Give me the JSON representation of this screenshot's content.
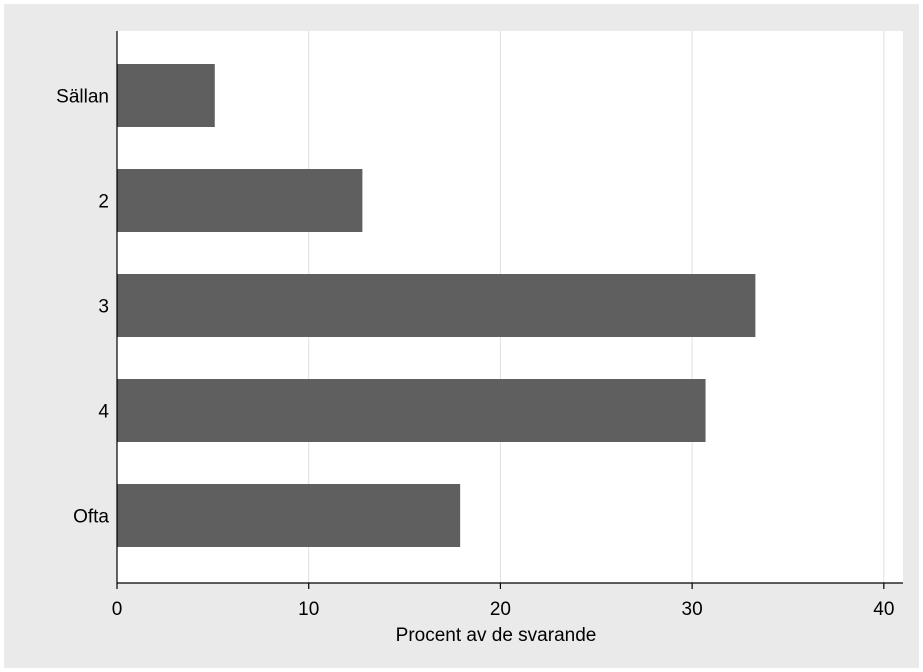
{
  "chart_data": {
    "type": "bar",
    "orientation": "horizontal",
    "title": "",
    "xlabel": "Procent av de svarande",
    "ylabel": "",
    "categories": [
      "Sällan",
      "2",
      "3",
      "4",
      "Ofta"
    ],
    "values": [
      5.1,
      12.8,
      33.3,
      30.7,
      17.9
    ],
    "xlim": [
      0,
      41
    ],
    "xticks": [
      0,
      10,
      20,
      30,
      40
    ],
    "xtick_labels": [
      "0",
      "10",
      "20",
      "30",
      "40"
    ],
    "grid": "vertical",
    "legend": "none",
    "colors": {
      "bar": "#5f5f5f",
      "plot_background": "#ffffff",
      "outer_background": "#eaeaea",
      "grid": "#e0e0e0",
      "axis": "#000000"
    }
  }
}
